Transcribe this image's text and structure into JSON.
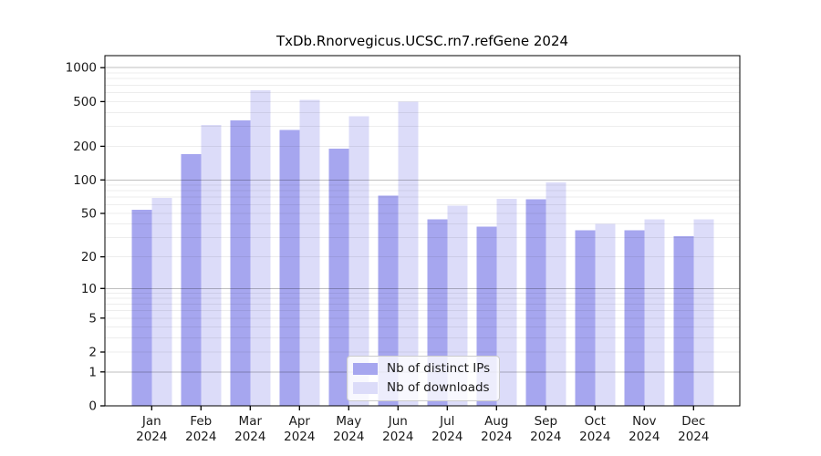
{
  "chart_data": {
    "type": "bar",
    "title": "TxDb.Rnorvegicus.UCSC.rn7.refGene 2024",
    "categories": [
      "Jan",
      "Feb",
      "Mar",
      "Apr",
      "May",
      "Jun",
      "Jul",
      "Aug",
      "Sep",
      "Oct",
      "Nov",
      "Dec"
    ],
    "xtick_year": "2024",
    "series": [
      {
        "name": "Nb of distinct IPs",
        "color": "#a6a6ef",
        "values": [
          54,
          170,
          340,
          280,
          190,
          72,
          44,
          38,
          67,
          35,
          35,
          31
        ]
      },
      {
        "name": "Nb of downloads",
        "color": "#dcdcf9",
        "values": [
          69,
          310,
          630,
          520,
          370,
          500,
          59,
          68,
          95,
          40,
          44,
          44
        ]
      }
    ],
    "yscale": "log1p",
    "yticks": [
      0,
      1,
      2,
      5,
      10,
      20,
      50,
      100,
      200,
      500,
      1000
    ],
    "ylim": [
      0,
      1280
    ],
    "grid": {
      "show": true,
      "minor_decades": [
        1,
        10,
        100
      ],
      "major_lines": [
        1,
        10,
        100,
        1000
      ]
    },
    "legend_position": "lower center",
    "colors": {
      "spine": "#000000",
      "major_grid": "rgba(0,0,0,0.25)",
      "minor_grid": "rgba(0,0,0,0.07)",
      "tick_text": "#1a1a1a"
    }
  }
}
